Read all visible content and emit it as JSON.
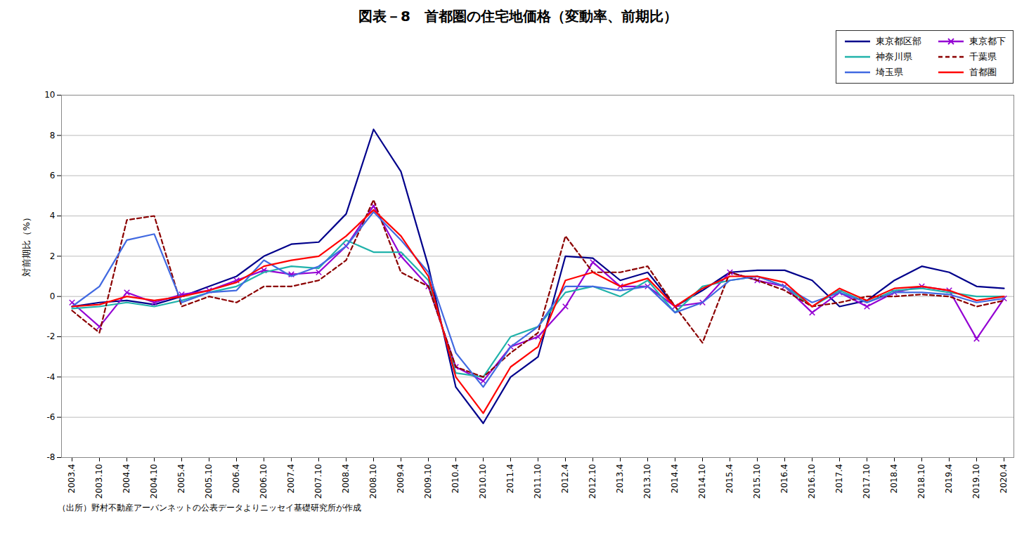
{
  "chart_data": {
    "type": "line",
    "title": "図表－8　首都圏の住宅地価格（変動率、前期比）",
    "ylabel": "対前期比（%）",
    "annotations": [
      "（出所）野村不動産アーバンネットの公表データよりニッセイ基礎研究所が作成"
    ],
    "categories": [
      "2003.4",
      "2003.10",
      "2004.4",
      "2004.10",
      "2005.4",
      "2005.10",
      "2006.4",
      "2006.10",
      "2007.4",
      "2007.10",
      "2008.4",
      "2008.10",
      "2009.4",
      "2009.10",
      "2010.4",
      "2010.10",
      "2011.4",
      "2011.10",
      "2012.4",
      "2012.10",
      "2013.4",
      "2013.10",
      "2014.4",
      "2014.10",
      "2015.4",
      "2015.10",
      "2016.4",
      "2016.10",
      "2017.4",
      "2017.10",
      "2018.4",
      "2018.10",
      "2019.4",
      "2019.10",
      "2020.4"
    ],
    "ylim": [
      -8,
      10
    ],
    "yticks": [
      -8,
      -6,
      -4,
      -2,
      0,
      2,
      4,
      6,
      8,
      10
    ],
    "grid": true,
    "legend": "upper right",
    "series": [
      {
        "name": "東京都区部",
        "color": "#00008B",
        "line_style": "solid",
        "values": [
          -0.5,
          -0.3,
          -0.2,
          -0.4,
          0.0,
          0.5,
          1.0,
          2.0,
          2.6,
          2.7,
          4.1,
          8.3,
          6.2,
          1.5,
          -4.5,
          -6.3,
          -4.0,
          -3.0,
          2.0,
          1.9,
          0.8,
          1.2,
          -0.5,
          0.3,
          1.2,
          1.3,
          1.3,
          0.8,
          -0.5,
          -0.2,
          0.8,
          1.5,
          1.2,
          0.5,
          0.4
        ]
      },
      {
        "name": "東京都下",
        "color": "#9400D3",
        "line_style": "solid",
        "marker": "x",
        "values": [
          -0.3,
          -1.5,
          0.2,
          -0.3,
          0.1,
          0.3,
          0.8,
          1.3,
          1.1,
          1.2,
          2.5,
          4.5,
          2.0,
          0.5,
          -3.5,
          -4.2,
          -2.5,
          -2.0,
          -0.5,
          1.7,
          0.5,
          0.5,
          -0.5,
          -0.3,
          1.2,
          0.8,
          0.5,
          -0.8,
          0.2,
          -0.5,
          0.2,
          0.5,
          0.3,
          -2.1,
          -0.1
        ]
      },
      {
        "name": "神奈川県",
        "color": "#20B2AA",
        "line_style": "solid",
        "values": [
          -0.6,
          -0.5,
          -0.3,
          -0.5,
          -0.2,
          0.2,
          0.5,
          1.2,
          1.5,
          1.4,
          2.8,
          2.2,
          2.2,
          0.8,
          -3.8,
          -4.0,
          -2.0,
          -1.5,
          0.2,
          0.5,
          0.0,
          0.8,
          -0.8,
          0.5,
          0.8,
          1.0,
          0.5,
          -0.5,
          0.3,
          -0.3,
          0.3,
          0.4,
          0.2,
          0.0,
          0.0
        ]
      },
      {
        "name": "千葉県",
        "color": "#8B0000",
        "line_style": "dashed",
        "values": [
          -0.7,
          -1.8,
          3.8,
          4.0,
          -0.5,
          0.0,
          -0.3,
          0.5,
          0.5,
          0.8,
          1.8,
          4.8,
          1.2,
          0.5,
          -3.5,
          -4.0,
          -2.8,
          -1.8,
          3.0,
          1.2,
          1.2,
          1.5,
          -0.5,
          -2.3,
          1.2,
          0.8,
          0.3,
          -0.5,
          -0.3,
          0.0,
          0.0,
          0.1,
          0.0,
          -0.5,
          -0.2
        ]
      },
      {
        "name": "埼玉県",
        "color": "#4169E1",
        "line_style": "solid",
        "values": [
          -0.5,
          0.5,
          2.8,
          3.1,
          -0.3,
          0.2,
          0.3,
          1.8,
          1.0,
          1.5,
          2.5,
          4.2,
          2.8,
          1.2,
          -2.8,
          -4.5,
          -2.5,
          -1.5,
          0.5,
          0.5,
          0.3,
          0.5,
          -0.8,
          -0.3,
          0.8,
          1.0,
          0.5,
          -0.3,
          0.2,
          -0.3,
          0.2,
          0.2,
          0.1,
          -0.3,
          -0.1
        ]
      },
      {
        "name": "首都圏",
        "color": "#FF0000",
        "line_style": "solid",
        "values": [
          -0.5,
          -0.4,
          0.0,
          -0.2,
          0.0,
          0.3,
          0.7,
          1.5,
          1.8,
          2.0,
          3.0,
          4.3,
          3.0,
          1.0,
          -4.0,
          -5.8,
          -3.5,
          -2.5,
          0.8,
          1.2,
          0.5,
          0.9,
          -0.5,
          0.4,
          1.0,
          1.0,
          0.7,
          -0.5,
          0.4,
          -0.2,
          0.4,
          0.5,
          0.3,
          -0.2,
          0.0
        ]
      }
    ]
  }
}
